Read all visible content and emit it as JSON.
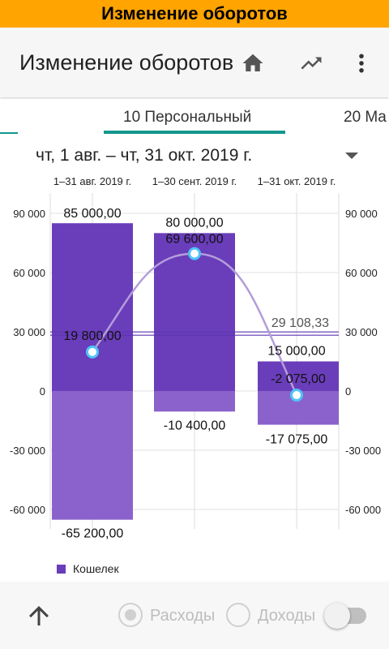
{
  "banner": {
    "title": "Изменение оборотов"
  },
  "app_bar": {
    "title": "Изменение оборотов",
    "icons": [
      "home-icon",
      "trending-up-icon",
      "more-vert-icon"
    ]
  },
  "tabs": [
    {
      "label": "10 Персональный",
      "selected": true
    },
    {
      "label": "20 Ma",
      "selected": false
    }
  ],
  "date_range": {
    "label": "чт, 1 авг. – чт, 31 окт. 2019 г."
  },
  "colors": {
    "accent": "#12968c",
    "banner": "#ffa400",
    "income_bar": "#6a3dba",
    "expense_bar": "#8b62cb",
    "balance_line": "#b39ddb",
    "point": "#4fc3f7"
  },
  "chart_data": {
    "type": "bar",
    "categories": [
      "1–31 авг. 2019 г.",
      "1–30 сент. 2019 г.",
      "1–31 окт. 2019 г."
    ],
    "series": [
      {
        "name": "Кошелек",
        "values": [
          85000,
          80000,
          15000
        ]
      },
      {
        "values": [
          -65200,
          -10400,
          -17075
        ]
      },
      {
        "values": [
          19800,
          69600,
          -2075
        ]
      }
    ],
    "data_labels": {
      "positive": [
        "85 000,00",
        "80 000,00",
        "15 000,00"
      ],
      "negative": [
        "-65 200,00",
        "-10 400,00",
        "-17 075,00"
      ],
      "balance": [
        "19 800,00",
        "69 600,00",
        "-2 075,00"
      ]
    },
    "average": {
      "value": 29108.33,
      "label": "29 108,33"
    },
    "yticks": [
      90000,
      60000,
      30000,
      0,
      -30000,
      -60000
    ],
    "ytick_labels": [
      "90 000",
      "60 000",
      "30 000",
      "0",
      "-30 000",
      "-60 000"
    ],
    "ylim": [
      -70000,
      98000
    ],
    "grid": true,
    "legend": "bottom-left"
  },
  "bottom_bar": {
    "expense_label": "Расходы",
    "income_label": "Доходы",
    "expense_selected": true,
    "income_selected": false,
    "switch_on": false
  }
}
